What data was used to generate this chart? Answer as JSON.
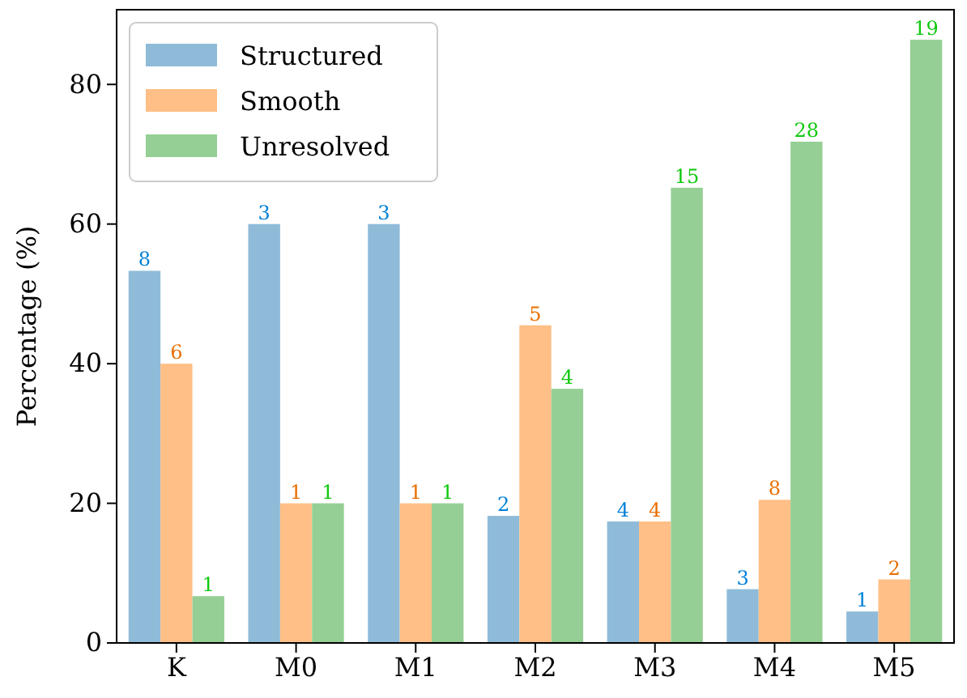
{
  "chart_data": {
    "type": "bar",
    "ylabel": "Percentage (%)",
    "categories": [
      "K",
      "M0",
      "M1",
      "M2",
      "M3",
      "M4",
      "M5"
    ],
    "series": [
      {
        "name": "Structured",
        "color": "#8fbbd9",
        "values": [
          53.3,
          60,
          60,
          18.2,
          17.4,
          7.7,
          4.5
        ]
      },
      {
        "name": "Smooth",
        "color": "#ffbf86",
        "values": [
          40,
          20,
          20,
          45.5,
          17.4,
          20.5,
          9.1
        ]
      },
      {
        "name": "Unresolved",
        "color": "#95cf95",
        "values": [
          6.7,
          20,
          20,
          36.4,
          65.2,
          71.8,
          86.4
        ]
      }
    ],
    "annotations": [
      "8",
      "3",
      "3",
      "2",
      "4",
      "3",
      "1",
      "6",
      "1",
      "1",
      "5",
      "4",
      "8",
      "2",
      "1",
      "1",
      "1",
      "4",
      "15",
      "28",
      "19"
    ],
    "ylim": [
      0,
      90.7
    ],
    "yticks": [
      0,
      20,
      40,
      60,
      80
    ],
    "legend": "top left",
    "grid": false
  }
}
